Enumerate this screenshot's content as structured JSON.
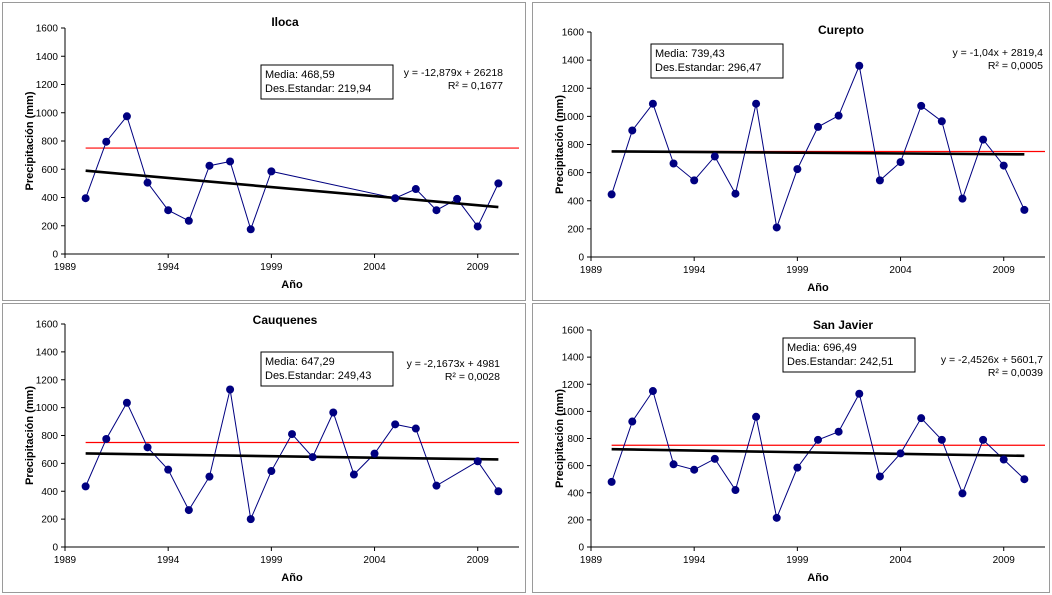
{
  "chart_data": [
    {
      "type": "line",
      "title": "Iloca",
      "xlabel": "Año",
      "ylabel": "Precipitación (mm)",
      "xlim": [
        1989,
        2011
      ],
      "ylim": [
        0,
        1600
      ],
      "xticks": [
        "1989",
        "1994",
        "1999",
        "2004",
        "2009"
      ],
      "yticks": [
        "0",
        "200",
        "400",
        "600",
        "800",
        "1000",
        "1200",
        "1400",
        "1600"
      ],
      "x": [
        1990,
        1991,
        1992,
        1993,
        1994,
        1995,
        1996,
        1997,
        1998,
        1999,
        2005,
        2006,
        2007,
        2008,
        2009,
        2010
      ],
      "values": [
        395,
        795,
        975,
        505,
        310,
        235,
        625,
        655,
        175,
        585,
        395,
        460,
        310,
        390,
        195,
        500
      ],
      "mean_line": 750,
      "trend": {
        "x": [
          1990,
          2010
        ],
        "y": [
          590,
          332
        ]
      },
      "stats_box": [
        "Media: 468,59",
        "Des.Estandar: 219,94"
      ],
      "equation": [
        "y = -12,879x + 26218",
        "R² = 0,1677"
      ],
      "colors": {
        "series": "#000080",
        "mean": "#ff0000",
        "trend": "#000000"
      }
    },
    {
      "type": "line",
      "title": "Curepto",
      "xlabel": "Año",
      "ylabel": "Precipitación (mm)",
      "xlim": [
        1989,
        2011
      ],
      "ylim": [
        0,
        1600
      ],
      "xticks": [
        "1989",
        "1994",
        "1999",
        "2004",
        "2009"
      ],
      "yticks": [
        "0",
        "200",
        "400",
        "600",
        "800",
        "1000",
        "1200",
        "1400",
        "1600"
      ],
      "x": [
        1990,
        1991,
        1992,
        1993,
        1994,
        1995,
        1996,
        1997,
        1998,
        1999,
        2000,
        2001,
        2002,
        2003,
        2004,
        2005,
        2006,
        2007,
        2008,
        2009,
        2010
      ],
      "values": [
        445,
        900,
        1090,
        665,
        545,
        715,
        450,
        1090,
        210,
        625,
        925,
        1005,
        1360,
        545,
        675,
        1075,
        965,
        415,
        835,
        650,
        335
      ],
      "mean_line": 750,
      "trend": {
        "x": [
          1990,
          2010
        ],
        "y": [
          751,
          730
        ]
      },
      "stats_box": [
        "Media: 739,43",
        "Des.Estandar: 296,47"
      ],
      "equation": [
        "y = -1,04x + 2819,4",
        "R² = 0,0005"
      ],
      "colors": {
        "series": "#000080",
        "mean": "#ff0000",
        "trend": "#000000"
      }
    },
    {
      "type": "line",
      "title": "Cauquenes",
      "xlabel": "Año",
      "ylabel": "Precipitación (mm)",
      "xlim": [
        1989,
        2011
      ],
      "ylim": [
        0,
        1600
      ],
      "xticks": [
        "1989",
        "1994",
        "1999",
        "2004",
        "2009"
      ],
      "yticks": [
        "0",
        "200",
        "400",
        "600",
        "800",
        "1000",
        "1200",
        "1400",
        "1600"
      ],
      "x": [
        1990,
        1991,
        1992,
        1993,
        1994,
        1995,
        1996,
        1997,
        1998,
        1999,
        2000,
        2001,
        2002,
        2003,
        2004,
        2005,
        2006,
        2007,
        2009,
        2010
      ],
      "values": [
        435,
        775,
        1035,
        715,
        555,
        265,
        505,
        1130,
        200,
        545,
        810,
        645,
        965,
        520,
        670,
        880,
        850,
        440,
        615,
        400
      ],
      "mean_line": 750,
      "trend": {
        "x": [
          1990,
          2010
        ],
        "y": [
          671,
          628
        ]
      },
      "stats_box": [
        "Media: 647,29",
        "Des.Estandar: 249,43"
      ],
      "equation": [
        "y = -2,1673x + 4981",
        "R² = 0,0028"
      ],
      "colors": {
        "series": "#000080",
        "mean": "#ff0000",
        "trend": "#000000"
      }
    },
    {
      "type": "line",
      "title": "San Javier",
      "xlabel": "Año",
      "ylabel": "Precipitación (mm)",
      "xlim": [
        1989,
        2011
      ],
      "ylim": [
        0,
        1600
      ],
      "xticks": [
        "1989",
        "1994",
        "1999",
        "2004",
        "2009"
      ],
      "yticks": [
        "0",
        "200",
        "400",
        "600",
        "800",
        "1000",
        "1200",
        "1400",
        "1600"
      ],
      "x": [
        1990,
        1991,
        1992,
        1993,
        1994,
        1995,
        1996,
        1997,
        1998,
        1999,
        2000,
        2001,
        2002,
        2003,
        2004,
        2005,
        2006,
        2007,
        2008,
        2009,
        2010
      ],
      "values": [
        480,
        925,
        1150,
        610,
        570,
        650,
        420,
        960,
        215,
        585,
        790,
        850,
        1130,
        520,
        690,
        950,
        790,
        395,
        790,
        645,
        500
      ],
      "mean_line": 750,
      "trend": {
        "x": [
          1990,
          2010
        ],
        "y": [
          721,
          672
        ]
      },
      "stats_box": [
        "Media: 696,49",
        "Des.Estandar: 242,51"
      ],
      "equation": [
        "y = -2,4526x + 5601,7",
        "R² = 0,0039"
      ],
      "colors": {
        "series": "#000080",
        "mean": "#ff0000",
        "trend": "#000000"
      }
    }
  ]
}
